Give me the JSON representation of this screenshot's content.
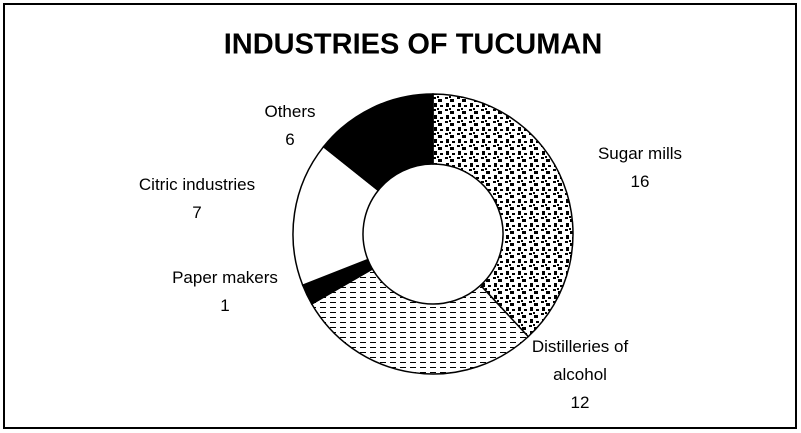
{
  "chart_data": {
    "type": "donut",
    "title": "INDUSTRIES OF TUCUMAN",
    "categories": [
      "Sugar mills",
      "Distilleries of alcohol",
      "Paper makers",
      "Citric industries",
      "Others"
    ],
    "values": [
      16,
      12,
      1,
      7,
      6
    ],
    "colors": [
      "#444444",
      "#ffffff",
      "#000000",
      "#ffffff",
      "#000000"
    ]
  }
}
